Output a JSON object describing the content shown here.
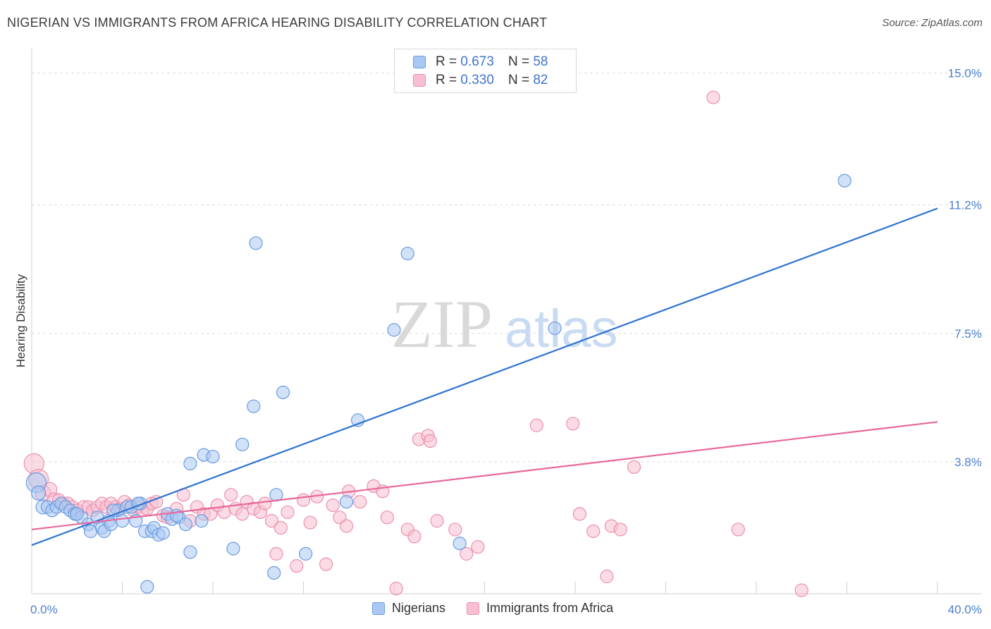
{
  "header": {
    "title": "NIGERIAN VS IMMIGRANTS FROM AFRICA HEARING DISABILITY CORRELATION CHART",
    "source": "Source: ZipAtlas.com"
  },
  "watermark": {
    "zip": "ZIP",
    "atlas": "atlas"
  },
  "legend": {
    "rows": [
      {
        "r_label": "R =",
        "r_value": "0.673",
        "n_label": "N =",
        "n_value": "58"
      },
      {
        "r_label": "R =",
        "r_value": "0.330",
        "n_label": "N =",
        "n_value": "82"
      }
    ]
  },
  "bottom_legend": {
    "series_a": "Nigerians",
    "series_b": "Immigrants from Africa"
  },
  "colors": {
    "blue_fill": "#a9c8f2",
    "blue_stroke": "#6b9be0",
    "blue_line": "#2f73d0",
    "pink_fill": "#f7bfd0",
    "pink_stroke": "#ec8fae",
    "pink_line": "#e8689a",
    "grid": "#dddddd",
    "tick_label": "#4a7fd0"
  },
  "chart_data": {
    "type": "scatter",
    "title": "NIGERIAN VS IMMIGRANTS FROM AFRICA HEARING DISABILITY CORRELATION CHART",
    "xlabel": "",
    "ylabel": "Hearing Disability",
    "xlim": [
      0,
      40
    ],
    "ylim": [
      0,
      15.5
    ],
    "x_tick_labels": [
      "0.0%",
      "40.0%"
    ],
    "y_ticks": [
      3.8,
      7.5,
      11.2,
      15.0
    ],
    "y_tick_labels": [
      "3.8%",
      "7.5%",
      "11.2%",
      "15.0%"
    ],
    "series": [
      {
        "name": "Nigerians",
        "color": "#6b9be0",
        "r": 0.673,
        "n": 58,
        "trend": {
          "x": [
            0,
            40
          ],
          "y": [
            1.4,
            11.1
          ]
        },
        "points": [
          [
            0.2,
            3.2,
            14
          ],
          [
            0.3,
            2.9,
            10
          ],
          [
            0.5,
            2.5,
            10
          ],
          [
            0.7,
            2.5,
            9
          ],
          [
            0.9,
            2.4,
            9
          ],
          [
            1.1,
            2.5,
            9
          ],
          [
            1.3,
            2.6,
            9
          ],
          [
            1.5,
            2.5,
            9
          ],
          [
            1.7,
            2.4,
            9
          ],
          [
            1.9,
            2.3,
            9
          ],
          [
            2.2,
            2.2,
            9
          ],
          [
            2.5,
            2.0,
            9
          ],
          [
            2.6,
            1.8,
            9
          ],
          [
            2.9,
            2.2,
            9
          ],
          [
            3.1,
            1.9,
            9
          ],
          [
            3.2,
            1.8,
            9
          ],
          [
            3.4,
            2.1,
            9
          ],
          [
            3.5,
            2.0,
            9
          ],
          [
            3.8,
            2.4,
            9
          ],
          [
            4.0,
            2.1,
            9
          ],
          [
            4.2,
            2.5,
            9
          ],
          [
            4.4,
            2.5,
            9
          ],
          [
            4.6,
            2.1,
            9
          ],
          [
            4.8,
            2.6,
            9
          ],
          [
            5.0,
            1.8,
            9
          ],
          [
            5.3,
            1.8,
            9
          ],
          [
            5.4,
            1.9,
            9
          ],
          [
            5.6,
            1.7,
            9
          ],
          [
            5.8,
            1.75,
            9
          ],
          [
            6.0,
            2.3,
            9
          ],
          [
            6.2,
            2.15,
            9
          ],
          [
            6.5,
            2.2,
            9
          ],
          [
            6.8,
            2.0,
            9
          ],
          [
            7.0,
            1.2,
            9
          ],
          [
            7.0,
            3.75,
            9
          ],
          [
            7.5,
            2.1,
            9
          ],
          [
            7.6,
            4.0,
            9
          ],
          [
            8.0,
            3.95,
            9
          ],
          [
            8.9,
            1.3,
            9
          ],
          [
            9.3,
            4.3,
            9
          ],
          [
            9.8,
            5.4,
            9
          ],
          [
            9.9,
            10.1,
            9
          ],
          [
            10.7,
            0.6,
            9
          ],
          [
            10.8,
            2.85,
            9
          ],
          [
            11.1,
            5.8,
            9
          ],
          [
            12.1,
            1.15,
            9
          ],
          [
            13.9,
            2.65,
            9
          ],
          [
            14.4,
            5.0,
            9
          ],
          [
            16.0,
            7.6,
            9
          ],
          [
            16.6,
            9.8,
            9
          ],
          [
            18.9,
            1.45,
            9
          ],
          [
            23.1,
            7.65,
            9
          ],
          [
            35.9,
            11.9,
            9
          ],
          [
            5.1,
            0.2,
            9
          ],
          [
            4.7,
            2.6,
            9
          ],
          [
            3.6,
            2.4,
            9
          ],
          [
            2.0,
            2.3,
            9
          ],
          [
            6.4,
            2.25,
            9
          ]
        ]
      },
      {
        "name": "Immigrants from Africa",
        "color": "#ec8fae",
        "r": 0.33,
        "n": 82,
        "trend": {
          "x": [
            0,
            40
          ],
          "y": [
            1.85,
            4.95
          ]
        },
        "points": [
          [
            0.1,
            3.75,
            14
          ],
          [
            0.3,
            3.3,
            14
          ],
          [
            0.5,
            2.9,
            11
          ],
          [
            0.8,
            3.0,
            10
          ],
          [
            1.0,
            2.7,
            10
          ],
          [
            1.2,
            2.7,
            9
          ],
          [
            1.4,
            2.6,
            9
          ],
          [
            1.6,
            2.6,
            9
          ],
          [
            1.8,
            2.5,
            9
          ],
          [
            2.0,
            2.4,
            9
          ],
          [
            2.3,
            2.5,
            9
          ],
          [
            2.5,
            2.5,
            9
          ],
          [
            2.7,
            2.4,
            9
          ],
          [
            2.9,
            2.5,
            9
          ],
          [
            3.1,
            2.6,
            9
          ],
          [
            3.3,
            2.5,
            9
          ],
          [
            3.5,
            2.6,
            9
          ],
          [
            3.7,
            2.5,
            9
          ],
          [
            3.9,
            2.45,
            9
          ],
          [
            4.1,
            2.65,
            9
          ],
          [
            4.3,
            2.55,
            9
          ],
          [
            4.5,
            2.4,
            9
          ],
          [
            4.7,
            2.5,
            9
          ],
          [
            4.9,
            2.4,
            9
          ],
          [
            5.1,
            2.45,
            9
          ],
          [
            5.3,
            2.6,
            9
          ],
          [
            5.5,
            2.65,
            9
          ],
          [
            5.8,
            2.25,
            9
          ],
          [
            6.0,
            2.2,
            9
          ],
          [
            6.4,
            2.45,
            9
          ],
          [
            6.7,
            2.85,
            9
          ],
          [
            7.0,
            2.1,
            9
          ],
          [
            7.3,
            2.5,
            9
          ],
          [
            7.6,
            2.3,
            9
          ],
          [
            7.9,
            2.3,
            9
          ],
          [
            8.2,
            2.55,
            9
          ],
          [
            8.5,
            2.35,
            9
          ],
          [
            8.8,
            2.85,
            9
          ],
          [
            9.0,
            2.45,
            9
          ],
          [
            9.3,
            2.3,
            9
          ],
          [
            9.5,
            2.65,
            9
          ],
          [
            9.8,
            2.45,
            9
          ],
          [
            10.1,
            2.35,
            9
          ],
          [
            10.3,
            2.6,
            9
          ],
          [
            10.6,
            2.1,
            9
          ],
          [
            10.8,
            1.15,
            9
          ],
          [
            11.0,
            1.9,
            9
          ],
          [
            11.3,
            2.35,
            9
          ],
          [
            11.7,
            0.8,
            9
          ],
          [
            12.0,
            2.7,
            9
          ],
          [
            12.3,
            2.05,
            9
          ],
          [
            12.6,
            2.8,
            9
          ],
          [
            13.0,
            0.85,
            9
          ],
          [
            13.3,
            2.55,
            9
          ],
          [
            13.6,
            2.2,
            9
          ],
          [
            13.9,
            1.95,
            9
          ],
          [
            14.0,
            2.95,
            9
          ],
          [
            14.5,
            2.65,
            9
          ],
          [
            15.1,
            3.1,
            9
          ],
          [
            15.5,
            2.95,
            9
          ],
          [
            15.7,
            2.2,
            9
          ],
          [
            16.1,
            0.15,
            9
          ],
          [
            16.6,
            1.85,
            9
          ],
          [
            16.9,
            1.65,
            9
          ],
          [
            17.1,
            4.45,
            9
          ],
          [
            17.5,
            4.55,
            9
          ],
          [
            17.6,
            4.4,
            9
          ],
          [
            17.9,
            2.1,
            9
          ],
          [
            18.7,
            1.85,
            9
          ],
          [
            19.2,
            1.15,
            9
          ],
          [
            19.7,
            1.35,
            9
          ],
          [
            22.3,
            4.85,
            9
          ],
          [
            23.9,
            4.9,
            9
          ],
          [
            24.2,
            2.3,
            9
          ],
          [
            24.8,
            1.8,
            9
          ],
          [
            25.4,
            0.5,
            9
          ],
          [
            25.6,
            1.95,
            9
          ],
          [
            26.0,
            1.85,
            9
          ],
          [
            26.6,
            3.65,
            9
          ],
          [
            31.2,
            1.85,
            9
          ],
          [
            34.0,
            0.1,
            9
          ],
          [
            30.1,
            14.3,
            9
          ]
        ]
      }
    ]
  }
}
